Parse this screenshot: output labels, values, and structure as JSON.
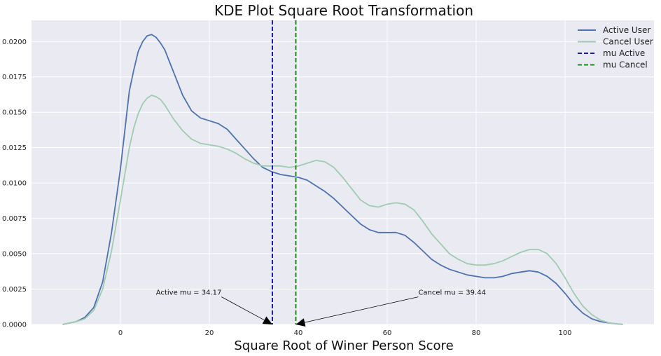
{
  "chart_data": {
    "type": "line",
    "title": "KDE Plot Square Root Transformation",
    "xlabel": "Square Root of Winer Person Score",
    "ylabel": "",
    "xlim": [
      -20,
      120
    ],
    "ylim": [
      0,
      0.0215
    ],
    "x_ticks": [
      0,
      20,
      40,
      60,
      80,
      100
    ],
    "x_tick_labels": [
      "0",
      "20",
      "40",
      "60",
      "80",
      "100"
    ],
    "y_ticks": [
      0,
      0.0025,
      0.005,
      0.0075,
      0.01,
      0.0125,
      0.015,
      0.0175,
      0.02
    ],
    "y_tick_labels": [
      "0.0000",
      "0.0025",
      "0.0050",
      "0.0075",
      "0.0100",
      "0.0125",
      "0.0150",
      "0.0175",
      "0.0200"
    ],
    "grid": true,
    "legend_position": "top-right",
    "series": [
      {
        "name": "Active User",
        "color": "#4c72b0",
        "style": "solid",
        "x": [
          -13,
          -10,
          -8,
          -6,
          -4,
          -2,
          0,
          2,
          3,
          4,
          5,
          6,
          7,
          8,
          9,
          10,
          11,
          12,
          14,
          16,
          18,
          20,
          22,
          24,
          26,
          28,
          30,
          32,
          34,
          36,
          38,
          40,
          42,
          44,
          46,
          48,
          50,
          52,
          54,
          56,
          58,
          60,
          62,
          64,
          66,
          68,
          70,
          72,
          74,
          76,
          78,
          80,
          82,
          84,
          86,
          88,
          90,
          92,
          94,
          96,
          98,
          100,
          102,
          104,
          106,
          108,
          110,
          113
        ],
        "y": [
          0,
          0.0002,
          0.0005,
          0.0012,
          0.003,
          0.0065,
          0.011,
          0.0165,
          0.018,
          0.0193,
          0.02,
          0.0204,
          0.0205,
          0.0203,
          0.0199,
          0.0194,
          0.0186,
          0.0178,
          0.0162,
          0.0151,
          0.0146,
          0.0144,
          0.0142,
          0.0138,
          0.0131,
          0.0124,
          0.0117,
          0.0111,
          0.0108,
          0.0106,
          0.0105,
          0.0104,
          0.0102,
          0.0098,
          0.0094,
          0.0089,
          0.0083,
          0.0077,
          0.0071,
          0.0067,
          0.0065,
          0.0065,
          0.0065,
          0.0063,
          0.0058,
          0.0052,
          0.0046,
          0.0042,
          0.0039,
          0.0037,
          0.0035,
          0.0034,
          0.0033,
          0.0033,
          0.0034,
          0.0036,
          0.0037,
          0.0038,
          0.0037,
          0.0034,
          0.0029,
          0.0022,
          0.0014,
          0.0008,
          0.0004,
          0.0002,
          0.0001,
          0
        ],
        "label": "Active User"
      },
      {
        "name": "Cancel User",
        "color": "#9fcbb0",
        "style": "solid",
        "x": [
          -13,
          -10,
          -8,
          -6,
          -4,
          -2,
          0,
          2,
          3,
          4,
          5,
          6,
          7,
          8,
          9,
          10,
          11,
          12,
          14,
          16,
          18,
          20,
          22,
          24,
          26,
          28,
          30,
          32,
          34,
          36,
          38,
          40,
          42,
          44,
          46,
          48,
          50,
          52,
          54,
          56,
          58,
          60,
          62,
          64,
          66,
          68,
          70,
          72,
          74,
          76,
          78,
          80,
          82,
          84,
          86,
          88,
          90,
          92,
          94,
          96,
          98,
          100,
          102,
          104,
          106,
          108,
          110,
          113
        ],
        "y": [
          0,
          0.0002,
          0.0004,
          0.001,
          0.0025,
          0.0052,
          0.0088,
          0.0125,
          0.0139,
          0.0149,
          0.0156,
          0.016,
          0.0162,
          0.0161,
          0.0159,
          0.0155,
          0.015,
          0.0145,
          0.0137,
          0.0131,
          0.0128,
          0.0127,
          0.0126,
          0.0124,
          0.0121,
          0.0117,
          0.0114,
          0.0112,
          0.0112,
          0.0112,
          0.0111,
          0.0112,
          0.0114,
          0.0116,
          0.0115,
          0.0111,
          0.0104,
          0.0096,
          0.0088,
          0.0084,
          0.0083,
          0.0085,
          0.0086,
          0.0085,
          0.0081,
          0.0073,
          0.0064,
          0.0057,
          0.005,
          0.0046,
          0.0043,
          0.0042,
          0.0042,
          0.0043,
          0.0045,
          0.0048,
          0.0051,
          0.0053,
          0.0053,
          0.005,
          0.0043,
          0.0033,
          0.0022,
          0.0013,
          0.0007,
          0.0003,
          0.0001,
          0
        ],
        "label": "Cancel User"
      }
    ],
    "vlines": [
      {
        "name": "mu Active",
        "x": 34.17,
        "color": "#1a1ab0",
        "style": "dashed",
        "label": "mu Active"
      },
      {
        "name": "mu Cancel",
        "x": 39.44,
        "color": "#1f8c1f",
        "style": "dashed",
        "label": "mu Cancel"
      }
    ],
    "annotations": [
      {
        "text": "Active mu = 34.17",
        "text_x": 8,
        "text_y": 0.0021,
        "arrow_x": 34.17,
        "arrow_y": 0
      },
      {
        "text": "Cancel mu = 39.44",
        "text_x": 67,
        "text_y": 0.0021,
        "arrow_x": 39.44,
        "arrow_y": 0
      }
    ],
    "colors": {
      "background": "#eaeaf2",
      "grid": "#ffffff"
    }
  }
}
